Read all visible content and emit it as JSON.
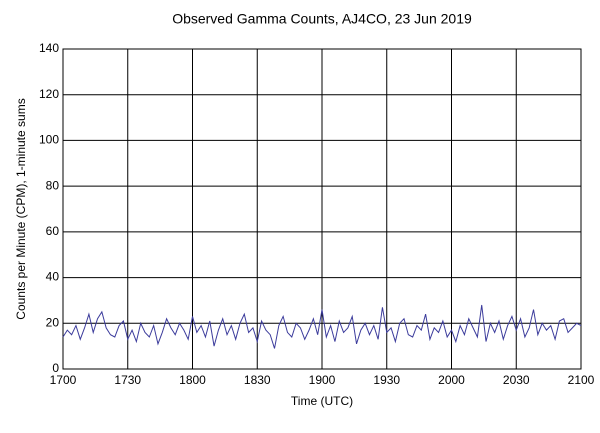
{
  "chart_data": {
    "type": "line",
    "title": "Observed Gamma Counts, AJ4CO, 23 Jun 2019",
    "x_label": "Time (UTC)",
    "y_label": "Counts per Minute (CPM), 1-minute sums",
    "x": [
      "1700",
      "1702",
      "1704",
      "1706",
      "1708",
      "1710",
      "1712",
      "1714",
      "1716",
      "1718",
      "1720",
      "1722",
      "1724",
      "1726",
      "1728",
      "1730",
      "1732",
      "1734",
      "1736",
      "1738",
      "1740",
      "1742",
      "1744",
      "1746",
      "1748",
      "1750",
      "1752",
      "1754",
      "1756",
      "1758",
      "1800",
      "1802",
      "1804",
      "1806",
      "1808",
      "1810",
      "1812",
      "1814",
      "1816",
      "1818",
      "1820",
      "1822",
      "1824",
      "1826",
      "1828",
      "1830",
      "1832",
      "1834",
      "1836",
      "1838",
      "1840",
      "1842",
      "1844",
      "1846",
      "1848",
      "1850",
      "1852",
      "1854",
      "1856",
      "1858",
      "1900",
      "1902",
      "1904",
      "1906",
      "1908",
      "1910",
      "1912",
      "1914",
      "1916",
      "1918",
      "1920",
      "1922",
      "1924",
      "1926",
      "1928",
      "1930",
      "1932",
      "1934",
      "1936",
      "1938",
      "1940",
      "1942",
      "1944",
      "1946",
      "1948",
      "1950",
      "1952",
      "1954",
      "1956",
      "1958",
      "2000",
      "2002",
      "2004",
      "2006",
      "2008",
      "2010",
      "2012",
      "2014",
      "2016",
      "2018",
      "2020",
      "2022",
      "2024",
      "2026",
      "2028",
      "2030",
      "2032",
      "2034",
      "2036",
      "2038",
      "2040",
      "2042",
      "2044",
      "2046",
      "2048",
      "2050",
      "2052",
      "2054",
      "2056",
      "2058",
      "2100"
    ],
    "series": [
      {
        "name": "CPM",
        "color": "#3c3c9c",
        "values": [
          14,
          17,
          15,
          19,
          13,
          18,
          24,
          16,
          22,
          25,
          18,
          15,
          14,
          19,
          21,
          13,
          17,
          12,
          20,
          16,
          14,
          19,
          11,
          16,
          22,
          18,
          15,
          20,
          17,
          13,
          23,
          16,
          19,
          14,
          21,
          10,
          17,
          22,
          15,
          19,
          13,
          20,
          24,
          16,
          18,
          12,
          21,
          17,
          15,
          9,
          19,
          23,
          16,
          14,
          20,
          18,
          13,
          17,
          22,
          15,
          26,
          14,
          19,
          12,
          21,
          16,
          18,
          23,
          11,
          17,
          20,
          15,
          19,
          13,
          27,
          16,
          18,
          12,
          20,
          22,
          15,
          14,
          19,
          17,
          24,
          13,
          18,
          16,
          21,
          14,
          17,
          12,
          19,
          15,
          22,
          18,
          14,
          28,
          12,
          20,
          16,
          21,
          13,
          19,
          23,
          17,
          22,
          14,
          18,
          26,
          15,
          20,
          17,
          19,
          13,
          21,
          22,
          16,
          18,
          20,
          19
        ]
      }
    ],
    "xlim": [
      "1700",
      "2100"
    ],
    "xticks": [
      "1700",
      "1730",
      "1800",
      "1830",
      "1900",
      "1930",
      "2000",
      "2030",
      "2100"
    ],
    "ylim": [
      0,
      140
    ],
    "yticks": [
      0,
      20,
      40,
      60,
      80,
      100,
      120,
      140
    ],
    "grid": true
  }
}
